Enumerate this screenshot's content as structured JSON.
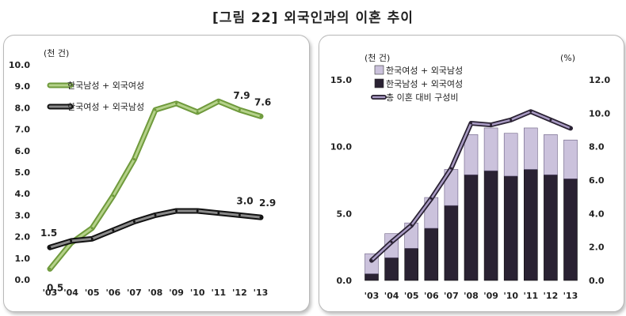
{
  "title": "[그림 22] 외국인과의 이혼 추이",
  "chart_data": [
    {
      "type": "line",
      "unit": "(천 건)",
      "categories": [
        "'03",
        "'04",
        "'05",
        "'06",
        "'07",
        "'08",
        "'09",
        "'10",
        "'11",
        "'12",
        "'13"
      ],
      "ylim": [
        0,
        10
      ],
      "yticks": [
        "0.0",
        "1.0",
        "2.0",
        "3.0",
        "4.0",
        "5.0",
        "6.0",
        "7.0",
        "8.0",
        "9.0",
        "10.0"
      ],
      "legend_position": "top-left",
      "series": [
        {
          "name": "한국남성 + 외국여성",
          "color": "#8db35a",
          "values": [
            0.5,
            1.7,
            2.4,
            3.9,
            5.6,
            7.9,
            8.2,
            7.8,
            8.3,
            7.9,
            7.6
          ]
        },
        {
          "name": "한국여성 + 외국남성",
          "color": "#2b2b2b",
          "values": [
            1.5,
            1.8,
            1.9,
            2.3,
            2.7,
            3.0,
            3.2,
            3.2,
            3.1,
            3.0,
            2.9
          ]
        }
      ],
      "data_labels": [
        {
          "series": 0,
          "index": 0,
          "text": "0.5"
        },
        {
          "series": 0,
          "index": 9,
          "text": "7.9"
        },
        {
          "series": 0,
          "index": 10,
          "text": "7.6"
        },
        {
          "series": 1,
          "index": 0,
          "text": "1.5"
        },
        {
          "series": 1,
          "index": 9,
          "text": "3.0"
        },
        {
          "series": 1,
          "index": 10,
          "text": "2.9"
        }
      ]
    },
    {
      "type": "bar",
      "stacked": true,
      "unit_left": "(천 건)",
      "unit_right": "(%)",
      "categories": [
        "'03",
        "'04",
        "'05",
        "'06",
        "'07",
        "'08",
        "'09",
        "'10",
        "'11",
        "'12",
        "'13"
      ],
      "ylim": [
        0,
        15
      ],
      "yticks": [
        "0.0",
        "5.0",
        "10.0",
        "15.0"
      ],
      "y2lim": [
        0,
        12
      ],
      "y2ticks": [
        "0.0",
        "2.0",
        "4.0",
        "6.0",
        "8.0",
        "10.0",
        "12.0"
      ],
      "legend_position": "top-left",
      "series": [
        {
          "name": "한국남성 + 외국여성",
          "color": "#2a2233",
          "values": [
            0.5,
            1.7,
            2.4,
            3.9,
            5.6,
            7.9,
            8.2,
            7.8,
            8.3,
            7.9,
            7.6
          ]
        },
        {
          "name": "한국여성 + 외국남성",
          "color": "#cbc2dc",
          "values": [
            1.5,
            1.8,
            1.9,
            2.3,
            2.7,
            3.0,
            3.2,
            3.2,
            3.1,
            3.0,
            2.9
          ]
        }
      ],
      "legend": [
        {
          "name": "한국여성 + 외국남성",
          "kind": "bar-light"
        },
        {
          "name": "한국남성 + 외국여성",
          "kind": "bar-dark"
        },
        {
          "name": "총 이혼 대비 구성비",
          "kind": "line"
        }
      ],
      "line_series": {
        "name": "총 이혼 대비 구성비",
        "axis": "right",
        "color": "#5a4a7a",
        "values": [
          1.2,
          2.3,
          3.3,
          4.9,
          6.7,
          9.4,
          9.3,
          9.6,
          10.1,
          9.6,
          9.1
        ]
      }
    }
  ]
}
